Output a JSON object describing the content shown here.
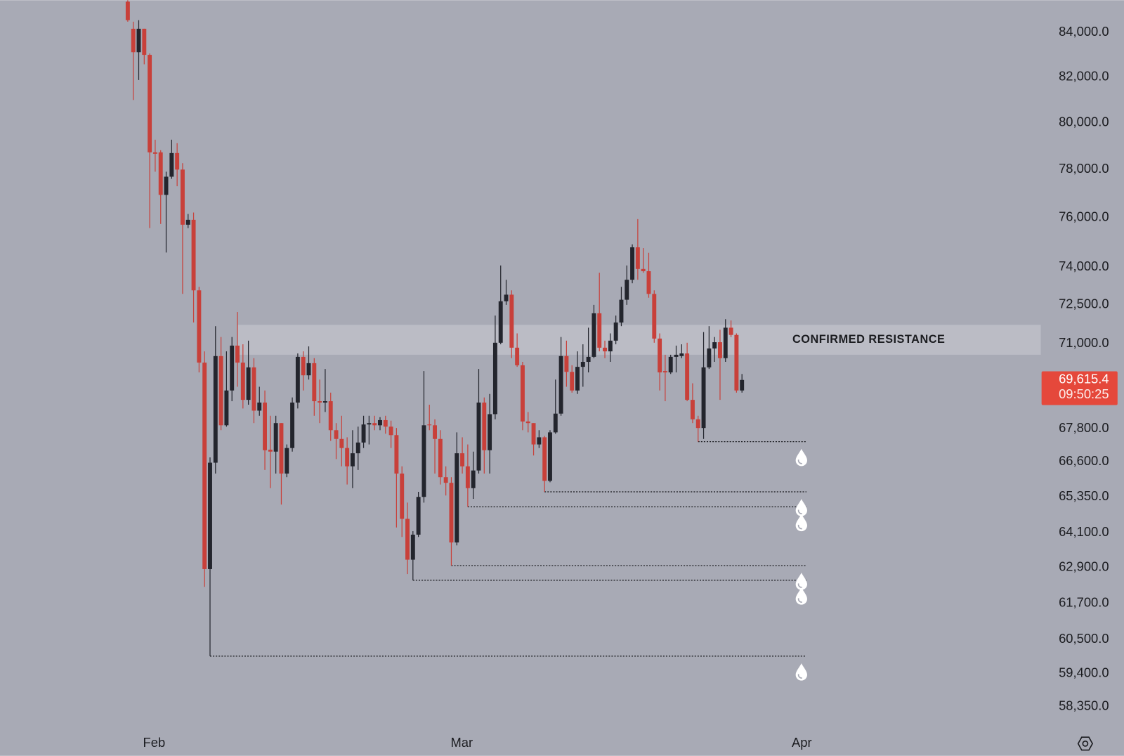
{
  "chart_data": {
    "type": "candlestick",
    "up_color": "#23252d",
    "down_color": "#c8403a",
    "background": "#a8aab5",
    "log_scale": true,
    "categories": [
      null,
      null,
      null,
      null,
      null,
      null,
      null,
      null,
      null,
      null,
      null,
      null,
      null,
      null,
      null,
      null,
      null,
      null,
      null,
      null,
      null,
      null,
      null,
      null,
      null,
      null,
      null,
      null,
      null,
      null,
      null,
      null,
      null,
      null,
      null,
      null,
      null,
      null,
      null,
      null,
      null,
      null,
      null,
      null,
      null,
      null,
      null,
      null,
      null,
      null,
      null,
      null,
      null,
      null,
      null,
      null,
      null,
      null,
      null,
      null,
      null,
      null,
      null,
      null,
      null,
      null,
      null,
      null,
      null,
      null,
      null,
      null,
      null,
      null,
      null,
      null,
      null,
      null,
      null,
      null,
      null,
      null,
      null,
      null,
      null,
      null,
      null,
      null,
      null,
      null,
      null,
      null,
      null,
      null,
      null,
      null,
      null,
      null,
      null,
      null,
      null,
      null,
      null,
      null,
      null,
      null,
      null,
      null,
      null,
      null,
      null,
      null,
      null
    ],
    "open": [
      85410,
      84170,
      83110,
      84170,
      82990,
      78730,
      78730,
      76940,
      77700,
      78700,
      78000,
      75710,
      75910,
      73070,
      70270,
      62850,
      66570,
      70520,
      67930,
      69220,
      70920,
      70270,
      68870,
      70090,
      68470,
      68770,
      67040,
      66970,
      68010,
      66180,
      67100,
      68770,
      70490,
      69790,
      70250,
      68820,
      68770,
      68820,
      67750,
      67430,
      67100,
      66440,
      66910,
      67300,
      67960,
      68010,
      67930,
      68120,
      67880,
      67570,
      66180,
      64580,
      63170,
      64030,
      65350,
      67960,
      67930,
      67430,
      66050,
      65850,
      63760,
      66910,
      66440,
      65660,
      66290,
      68770,
      67020,
      68340,
      71030,
      72640,
      72900,
      70840,
      70170,
      68070,
      68010,
      67230,
      67490,
      65920,
      67670,
      68360,
      70520,
      69920,
      69220,
      70110,
      70300,
      70490,
      72170,
      70840,
      70700,
      71110,
      71810,
      72700,
      73490,
      74790,
      73920,
      73830,
      72930,
      71190,
      69950,
      69900,
      70490,
      70520,
      70620,
      68870,
      68150,
      67830,
      70090,
      70810,
      71050,
      70440,
      71610,
      71330,
      69220
    ],
    "high": [
      85740,
      84490,
      84560,
      84170,
      83050,
      79270,
      78820,
      77910,
      79270,
      79120,
      78270,
      76150,
      76210,
      73210,
      70700,
      66760,
      71670,
      71250,
      70700,
      71250,
      72220,
      70970,
      71110,
      70440,
      69360,
      69220,
      68280,
      68280,
      68010,
      67230,
      68960,
      70620,
      70700,
      70890,
      70440,
      69630,
      70030,
      69140,
      68010,
      68280,
      67490,
      67750,
      67880,
      68280,
      68280,
      68280,
      68230,
      68280,
      68100,
      67830,
      66440,
      65150,
      64150,
      65530,
      69950,
      68690,
      68150,
      67750,
      66440,
      66050,
      67670,
      67490,
      67230,
      66970,
      70030,
      68960,
      69090,
      72080,
      74060,
      73490,
      73070,
      71390,
      70300,
      68420,
      68010,
      67750,
      67540,
      67750,
      69630,
      71250,
      71110,
      70170,
      70700,
      70970,
      71610,
      72500,
      73770,
      71110,
      71390,
      72080,
      73210,
      74060,
      74910,
      75940,
      74760,
      74570,
      73070,
      71390,
      70570,
      70570,
      70920,
      70970,
      71030,
      69490,
      68280,
      71440,
      71670,
      71250,
      71530,
      71940,
      71890,
      71390,
      69840
    ],
    "low": [
      84490,
      80990,
      81870,
      82570,
      75570,
      77910,
      75740,
      74580,
      77610,
      77300,
      72930,
      75570,
      71810,
      69900,
      62250,
      59960,
      66180,
      67750,
      67880,
      68820,
      69360,
      68550,
      68690,
      68010,
      68280,
      66310,
      65660,
      66180,
      65080,
      66050,
      66970,
      68550,
      69220,
      69630,
      68280,
      68010,
      68420,
      67360,
      66700,
      66440,
      65790,
      65660,
      66310,
      67100,
      67230,
      67750,
      67750,
      67620,
      67100,
      64280,
      63950,
      62680,
      62470,
      63950,
      65150,
      67750,
      66180,
      65790,
      65400,
      62970,
      63660,
      66180,
      65000,
      65280,
      66180,
      66180,
      66180,
      68150,
      70970,
      72500,
      70440,
      70110,
      67750,
      67670,
      66830,
      67100,
      65530,
      65870,
      67620,
      68280,
      69360,
      69140,
      69090,
      69360,
      69900,
      70440,
      70700,
      70440,
      70300,
      70970,
      71670,
      72500,
      73350,
      73490,
      73770,
      72780,
      71030,
      69220,
      68820,
      69840,
      69900,
      70440,
      68820,
      68010,
      67330,
      67430,
      70030,
      70300,
      68870,
      70300,
      71250,
      69140,
      69140
    ],
    "close": [
      84560,
      83110,
      84170,
      82990,
      78730,
      78670,
      76940,
      77700,
      78700,
      78000,
      75710,
      75910,
      73070,
      70270,
      62850,
      66570,
      70520,
      67930,
      69220,
      70920,
      70270,
      68870,
      70090,
      68470,
      68770,
      67020,
      66970,
      68010,
      66180,
      67100,
      68770,
      70490,
      69790,
      70250,
      68820,
      68770,
      68820,
      67750,
      67430,
      67100,
      66440,
      66910,
      67300,
      67960,
      68010,
      67930,
      68120,
      67880,
      67570,
      66180,
      64580,
      63170,
      64030,
      65350,
      67930,
      67930,
      67430,
      66050,
      65850,
      63760,
      66910,
      66440,
      65660,
      66290,
      68770,
      67020,
      68340,
      71030,
      72640,
      72900,
      70840,
      70170,
      68070,
      68010,
      67230,
      67490,
      65920,
      67670,
      68360,
      70520,
      69920,
      69220,
      70110,
      70300,
      70490,
      72170,
      70840,
      70700,
      71110,
      71810,
      72700,
      73490,
      74790,
      73920,
      73830,
      72930,
      71190,
      69900,
      69900,
      70490,
      70570,
      70620,
      68870,
      68150,
      67830,
      70090,
      70810,
      71050,
      70440,
      71610,
      71330,
      69220,
      69615.4
    ],
    "xlim": [
      -23.3,
      166.5
    ],
    "xticks": [
      {
        "value": 4.8,
        "label": "Feb"
      },
      {
        "value": 60.9,
        "label": "Mar"
      },
      {
        "value": 122.9,
        "label": "Apr"
      }
    ],
    "ylim": [
      57680,
      85480
    ],
    "yticks": [
      {
        "value": 84000,
        "label": "84,000.0"
      },
      {
        "value": 82000,
        "label": "82,000.0"
      },
      {
        "value": 80000,
        "label": "80,000.0"
      },
      {
        "value": 78000,
        "label": "78,000.0"
      },
      {
        "value": 76000,
        "label": "76,000.0"
      },
      {
        "value": 74000,
        "label": "74,000.0"
      },
      {
        "value": 72500,
        "label": "72,500.0"
      },
      {
        "value": 71000,
        "label": "71,000.0"
      },
      {
        "value": 67800,
        "label": "67,800.0"
      },
      {
        "value": 66600,
        "label": "66,600.0"
      },
      {
        "value": 65350,
        "label": "65,350.0"
      },
      {
        "value": 64100,
        "label": "64,100.0"
      },
      {
        "value": 62900,
        "label": "62,900.0"
      },
      {
        "value": 61700,
        "label": "61,700.0"
      },
      {
        "value": 60500,
        "label": "60,500.0"
      },
      {
        "value": 59400,
        "label": "59,400.0"
      },
      {
        "value": 58350,
        "label": "58,350.0"
      }
    ],
    "resistance": {
      "label": "CONFIRMED RESISTANCE",
      "top": 71720,
      "bottom": 70570,
      "from": 20
    },
    "liquidity_levels": [
      104,
      76,
      62,
      59,
      52,
      15
    ],
    "current_price": {
      "value": 69615.4,
      "label": "69,615.4",
      "color": "#e5483b"
    },
    "countdown": "09:50:25"
  }
}
